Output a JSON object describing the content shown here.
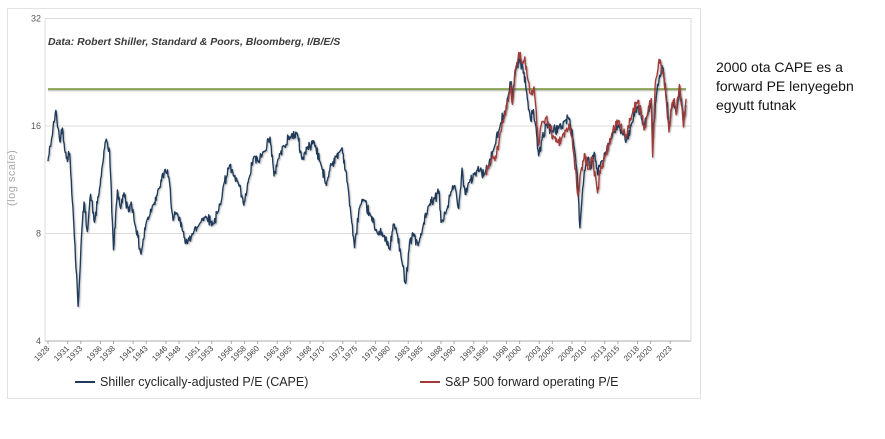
{
  "annotation": {
    "lines": [
      "2000 ota CAPE es a",
      "forward PE lenyegebn",
      "egyutt futnak"
    ]
  },
  "chart_data": {
    "type": "line",
    "source_note": "Data: Robert Shiller, Standard & Poors, Bloomberg, I/B/E/S",
    "y_axis_label": "(log scale)",
    "y_scale": "log2",
    "y_ticks": [
      32,
      16,
      8,
      4
    ],
    "ylim": [
      4,
      32
    ],
    "x_range": [
      1928,
      2025.5
    ],
    "grid": "horizontal",
    "legend_position": "bottom",
    "x_tick_labels": [
      "1928",
      "1931",
      "1933",
      "1936",
      "1938",
      "1941",
      "1943",
      "1946",
      "1948",
      "1951",
      "1953",
      "1956",
      "1958",
      "1960",
      "1963",
      "1965",
      "1968",
      "1970",
      "1973",
      "1975",
      "1978",
      "1980",
      "1983",
      "1985",
      "1988",
      "1990",
      "1993",
      "1995",
      "1998",
      "2000",
      "2003",
      "2005",
      "2008",
      "2010",
      "2013",
      "2015",
      "2018",
      "2020",
      "2023"
    ],
    "reference_line": {
      "value": 20.3,
      "color": "#8aa356",
      "description": "green horizontal reference line across full width"
    },
    "colors": {
      "grid": "#dcdcdc",
      "axis": "#adadad",
      "tick_text": "#3f3f3f",
      "y_tick_text": "#595959"
    },
    "series": [
      {
        "name": "Shiller cyclically-adjusted P/E (CAPE)",
        "color": "#1f3a5a",
        "points": [
          [
            1928.0,
            12.8
          ],
          [
            1928.5,
            14.5
          ],
          [
            1929.2,
            17.7
          ],
          [
            1929.8,
            14.5
          ],
          [
            1930.2,
            15.8
          ],
          [
            1930.8,
            13.0
          ],
          [
            1931.3,
            13.4
          ],
          [
            1931.8,
            9.5
          ],
          [
            1932.6,
            5.0
          ],
          [
            1933.1,
            7.8
          ],
          [
            1933.5,
            9.8
          ],
          [
            1934.0,
            8.1
          ],
          [
            1934.5,
            10.3
          ],
          [
            1935.1,
            8.6
          ],
          [
            1935.8,
            10.4
          ],
          [
            1936.3,
            12.4
          ],
          [
            1936.9,
            14.7
          ],
          [
            1937.4,
            13.6
          ],
          [
            1938.0,
            7.2
          ],
          [
            1938.6,
            10.6
          ],
          [
            1939.1,
            9.4
          ],
          [
            1939.6,
            10.4
          ],
          [
            1940.3,
            9.2
          ],
          [
            1940.7,
            9.8
          ],
          [
            1941.4,
            8.3
          ],
          [
            1942.2,
            7.0
          ],
          [
            1943.0,
            8.6
          ],
          [
            1944.0,
            9.6
          ],
          [
            1945.0,
            10.7
          ],
          [
            1945.9,
            12.1
          ],
          [
            1946.5,
            11.3
          ],
          [
            1947.1,
            8.7
          ],
          [
            1947.7,
            9.1
          ],
          [
            1948.6,
            8.1
          ],
          [
            1949.3,
            7.5
          ],
          [
            1950.0,
            8.0
          ],
          [
            1950.8,
            8.3
          ],
          [
            1951.5,
            8.8
          ],
          [
            1952.2,
            8.9
          ],
          [
            1953.2,
            8.5
          ],
          [
            1954.0,
            9.2
          ],
          [
            1954.8,
            10.9
          ],
          [
            1955.7,
            12.4
          ],
          [
            1956.3,
            11.6
          ],
          [
            1957.1,
            11.0
          ],
          [
            1957.9,
            9.6
          ],
          [
            1958.8,
            11.6
          ],
          [
            1959.4,
            13.1
          ],
          [
            1960.1,
            12.7
          ],
          [
            1961.0,
            13.6
          ],
          [
            1961.9,
            14.9
          ],
          [
            1962.5,
            11.6
          ],
          [
            1963.1,
            12.9
          ],
          [
            1964.0,
            14.1
          ],
          [
            1965.0,
            14.9
          ],
          [
            1966.0,
            15.3
          ],
          [
            1966.8,
            12.9
          ],
          [
            1967.6,
            13.9
          ],
          [
            1968.6,
            14.5
          ],
          [
            1969.6,
            12.6
          ],
          [
            1970.5,
            10.9
          ],
          [
            1971.1,
            12.4
          ],
          [
            1972.0,
            13.1
          ],
          [
            1972.9,
            13.9
          ],
          [
            1973.8,
            10.8
          ],
          [
            1974.8,
            7.3
          ],
          [
            1975.5,
            9.4
          ],
          [
            1976.2,
            9.9
          ],
          [
            1977.2,
            9.0
          ],
          [
            1978.2,
            8.1
          ],
          [
            1979.2,
            7.9
          ],
          [
            1980.2,
            7.2
          ],
          [
            1980.7,
            8.5
          ],
          [
            1981.3,
            8.0
          ],
          [
            1982.0,
            6.7
          ],
          [
            1982.6,
            5.8
          ],
          [
            1983.2,
            7.6
          ],
          [
            1983.8,
            8.0
          ],
          [
            1984.5,
            7.4
          ],
          [
            1985.2,
            8.3
          ],
          [
            1986.2,
            9.6
          ],
          [
            1987.0,
            10.0
          ],
          [
            1987.7,
            10.5
          ],
          [
            1988.0,
            8.6
          ],
          [
            1988.7,
            9.1
          ],
          [
            1989.6,
            10.5
          ],
          [
            1990.1,
            10.9
          ],
          [
            1990.7,
            9.4
          ],
          [
            1991.2,
            12.2
          ],
          [
            1991.7,
            10.3
          ],
          [
            1992.2,
            11.1
          ],
          [
            1993.1,
            11.7
          ],
          [
            1994.0,
            12.1
          ],
          [
            1994.6,
            11.7
          ],
          [
            1995.2,
            12.2
          ],
          [
            1996.1,
            13.9
          ],
          [
            1997.0,
            15.9
          ],
          [
            1997.7,
            17.6
          ],
          [
            1998.2,
            19.2
          ],
          [
            1998.7,
            21.3
          ],
          [
            1998.9,
            19.2
          ],
          [
            1999.4,
            23.2
          ],
          [
            2000.0,
            24.6
          ],
          [
            2000.5,
            23.2
          ],
          [
            2001.1,
            19.8
          ],
          [
            2001.7,
            16.6
          ],
          [
            2002.1,
            17.8
          ],
          [
            2002.9,
            13.2
          ],
          [
            2003.4,
            14.6
          ],
          [
            2004.1,
            16.2
          ],
          [
            2005.0,
            15.5
          ],
          [
            2006.0,
            15.8
          ],
          [
            2007.0,
            16.6
          ],
          [
            2007.6,
            16.8
          ],
          [
            2008.2,
            14.6
          ],
          [
            2008.8,
            11.8
          ],
          [
            2009.2,
            8.3
          ],
          [
            2009.9,
            12.0
          ],
          [
            2010.4,
            13.0
          ],
          [
            2010.8,
            12.1
          ],
          [
            2011.4,
            13.5
          ],
          [
            2011.9,
            11.7
          ],
          [
            2012.4,
            12.7
          ],
          [
            2013.1,
            13.5
          ],
          [
            2014.1,
            14.9
          ],
          [
            2015.1,
            16.1
          ],
          [
            2015.8,
            15.1
          ],
          [
            2016.2,
            14.4
          ],
          [
            2017.1,
            16.3
          ],
          [
            2018.1,
            18.2
          ],
          [
            2018.6,
            16.8
          ],
          [
            2019.0,
            15.9
          ],
          [
            2019.6,
            17.3
          ],
          [
            2020.1,
            18.5
          ],
          [
            2020.3,
            14.9
          ],
          [
            2020.9,
            19.6
          ],
          [
            2021.4,
            22.2
          ],
          [
            2021.9,
            23.3
          ],
          [
            2022.4,
            19.3
          ],
          [
            2022.8,
            16.1
          ],
          [
            2023.2,
            17.9
          ],
          [
            2023.6,
            18.6
          ],
          [
            2023.9,
            17.4
          ],
          [
            2024.4,
            19.9
          ],
          [
            2024.8,
            18.3
          ],
          [
            2025.0,
            16.8
          ],
          [
            2025.4,
            18.2
          ]
        ]
      },
      {
        "name": "S&P 500 forward operating P/E",
        "color": "#a23a38",
        "points": [
          [
            1994.8,
            11.8
          ],
          [
            1995.3,
            12.3
          ],
          [
            1995.9,
            13.2
          ],
          [
            1996.4,
            13.0
          ],
          [
            1997.0,
            15.2
          ],
          [
            1997.6,
            16.8
          ],
          [
            1998.2,
            18.8
          ],
          [
            1998.7,
            20.8
          ],
          [
            1998.9,
            18.4
          ],
          [
            1999.3,
            23.0
          ],
          [
            1999.7,
            24.2
          ],
          [
            2000.1,
            25.7
          ],
          [
            2000.4,
            24.2
          ],
          [
            2000.8,
            25.0
          ],
          [
            2001.2,
            21.8
          ],
          [
            2001.8,
            19.6
          ],
          [
            2002.2,
            20.6
          ],
          [
            2002.9,
            14.1
          ],
          [
            2003.3,
            16.1
          ],
          [
            2004.0,
            16.9
          ],
          [
            2004.6,
            15.9
          ],
          [
            2005.2,
            14.9
          ],
          [
            2005.8,
            14.4
          ],
          [
            2006.4,
            14.8
          ],
          [
            2007.1,
            15.6
          ],
          [
            2007.7,
            15.9
          ],
          [
            2008.2,
            13.6
          ],
          [
            2008.9,
            10.2
          ],
          [
            2009.3,
            11.8
          ],
          [
            2009.9,
            13.4
          ],
          [
            2010.5,
            12.1
          ],
          [
            2011.1,
            13.1
          ],
          [
            2011.9,
            10.4
          ],
          [
            2012.4,
            12.3
          ],
          [
            2013.1,
            13.2
          ],
          [
            2014.1,
            15.3
          ],
          [
            2015.1,
            16.6
          ],
          [
            2015.8,
            15.3
          ],
          [
            2016.2,
            14.8
          ],
          [
            2017.1,
            17.1
          ],
          [
            2018.1,
            18.9
          ],
          [
            2018.6,
            17.2
          ],
          [
            2019.0,
            15.6
          ],
          [
            2019.6,
            17.6
          ],
          [
            2020.1,
            19.1
          ],
          [
            2020.3,
            13.1
          ],
          [
            2020.7,
            21.0
          ],
          [
            2021.3,
            24.6
          ],
          [
            2021.9,
            22.6
          ],
          [
            2022.4,
            18.8
          ],
          [
            2022.8,
            15.4
          ],
          [
            2023.2,
            18.1
          ],
          [
            2023.6,
            19.1
          ],
          [
            2023.9,
            17.2
          ],
          [
            2024.4,
            20.9
          ],
          [
            2024.8,
            18.1
          ],
          [
            2025.0,
            15.9
          ],
          [
            2025.4,
            19.0
          ]
        ]
      }
    ]
  }
}
